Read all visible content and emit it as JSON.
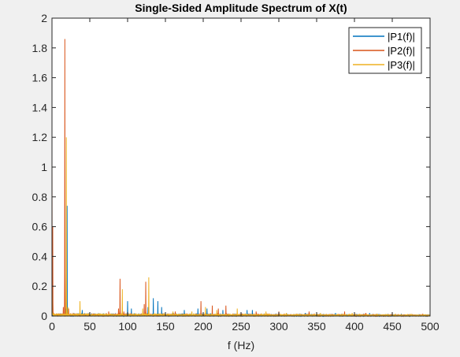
{
  "chart_data": {
    "type": "line",
    "title": "Single-Sided Amplitude Spectrum of X(t)",
    "xlabel": "f (Hz)",
    "ylabel": "",
    "xlim": [
      0,
      500
    ],
    "ylim": [
      0,
      2
    ],
    "xticks": [
      0,
      50,
      100,
      150,
      200,
      250,
      300,
      350,
      400,
      450,
      500
    ],
    "yticks": [
      0,
      0.2,
      0.4,
      0.6,
      0.8,
      1,
      1.2,
      1.4,
      1.6,
      1.8,
      2
    ],
    "xtick_labels": [
      "0",
      "50",
      "100",
      "150",
      "200",
      "250",
      "300",
      "350",
      "400",
      "450",
      "500"
    ],
    "ytick_labels": [
      "0",
      "0.2",
      "0.4",
      "0.6",
      "0.8",
      "1",
      "1.2",
      "1.4",
      "1.6",
      "1.8",
      "2"
    ],
    "grid": false,
    "legend_position": "top-right",
    "series": [
      {
        "name": "|P1(f)|",
        "color": "#0072BD",
        "peaks": [
          {
            "f": 0,
            "a": 0.35
          },
          {
            "f": 20,
            "a": 0.74
          },
          {
            "f": 18,
            "a": 0.05
          },
          {
            "f": 40,
            "a": 0.04
          },
          {
            "f": 100,
            "a": 0.1
          },
          {
            "f": 105,
            "a": 0.05
          },
          {
            "f": 127,
            "a": 0.06
          },
          {
            "f": 134,
            "a": 0.12
          },
          {
            "f": 140,
            "a": 0.1
          },
          {
            "f": 145,
            "a": 0.06
          },
          {
            "f": 175,
            "a": 0.04
          },
          {
            "f": 193,
            "a": 0.05
          },
          {
            "f": 205,
            "a": 0.05
          },
          {
            "f": 226,
            "a": 0.04
          },
          {
            "f": 258,
            "a": 0.04
          },
          {
            "f": 265,
            "a": 0.04
          },
          {
            "f": 335,
            "a": 0.02
          },
          {
            "f": 375,
            "a": 0.02
          },
          {
            "f": 420,
            "a": 0.02
          },
          {
            "f": 462,
            "a": 0.015
          }
        ]
      },
      {
        "name": "|P2(f)|",
        "color": "#D95319",
        "peaks": [
          {
            "f": 0,
            "a": 1.06
          },
          {
            "f": 1,
            "a": 0.6
          },
          {
            "f": 17,
            "a": 1.86
          },
          {
            "f": 15,
            "a": 0.06
          },
          {
            "f": 22,
            "a": 0.05
          },
          {
            "f": 75,
            "a": 0.03
          },
          {
            "f": 90,
            "a": 0.25
          },
          {
            "f": 88,
            "a": 0.05
          },
          {
            "f": 95,
            "a": 0.03
          },
          {
            "f": 124,
            "a": 0.23
          },
          {
            "f": 122,
            "a": 0.08
          },
          {
            "f": 163,
            "a": 0.03
          },
          {
            "f": 197,
            "a": 0.1
          },
          {
            "f": 212,
            "a": 0.07
          },
          {
            "f": 220,
            "a": 0.05
          },
          {
            "f": 230,
            "a": 0.07
          },
          {
            "f": 270,
            "a": 0.03
          },
          {
            "f": 300,
            "a": 0.03
          },
          {
            "f": 340,
            "a": 0.03
          },
          {
            "f": 387,
            "a": 0.03
          },
          {
            "f": 415,
            "a": 0.02
          },
          {
            "f": 450,
            "a": 0.02
          },
          {
            "f": 490,
            "a": 0.015
          }
        ]
      },
      {
        "name": "|P3(f)|",
        "color": "#EDB120",
        "peaks": [
          {
            "f": 0,
            "a": 0.2
          },
          {
            "f": 19,
            "a": 1.2
          },
          {
            "f": 21,
            "a": 0.06
          },
          {
            "f": 37,
            "a": 0.1
          },
          {
            "f": 93,
            "a": 0.18
          },
          {
            "f": 128,
            "a": 0.26
          },
          {
            "f": 120,
            "a": 0.05
          },
          {
            "f": 160,
            "a": 0.03
          },
          {
            "f": 185,
            "a": 0.03
          },
          {
            "f": 203,
            "a": 0.06
          },
          {
            "f": 218,
            "a": 0.04
          },
          {
            "f": 245,
            "a": 0.05
          },
          {
            "f": 283,
            "a": 0.03
          },
          {
            "f": 310,
            "a": 0.02
          },
          {
            "f": 355,
            "a": 0.02
          },
          {
            "f": 397,
            "a": 0.02
          },
          {
            "f": 430,
            "a": 0.015
          },
          {
            "f": 475,
            "a": 0.015
          }
        ]
      }
    ]
  }
}
